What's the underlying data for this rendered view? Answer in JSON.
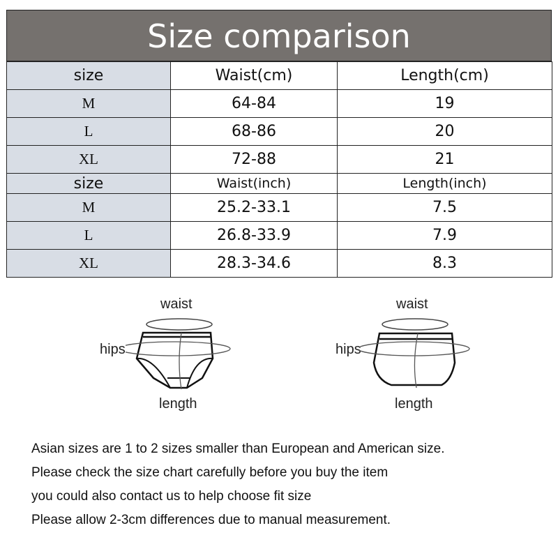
{
  "title": "Size comparison",
  "cm_table": {
    "headers": [
      "size",
      "Waist(cm)",
      "Length(cm)"
    ],
    "rows": [
      [
        "M",
        "64-84",
        "19"
      ],
      [
        "L",
        "68-86",
        "20"
      ],
      [
        "XL",
        "72-88",
        "21"
      ]
    ]
  },
  "inch_table": {
    "headers": [
      "size",
      "Waist(inch)",
      "Length(inch)"
    ],
    "rows": [
      [
        "M",
        "25.2-33.1",
        "7.5"
      ],
      [
        "L",
        "26.8-33.9",
        "7.9"
      ],
      [
        "XL",
        "28.3-34.6",
        "8.3"
      ]
    ]
  },
  "diagram": {
    "waist": "waist",
    "hips": "hips",
    "length": "length"
  },
  "notes": [
    "Asian sizes are 1 to 2 sizes smaller than European and American size.",
    "Please check the size chart carefully before you buy the item",
    "you could also contact us to help choose fit size",
    "Please allow 2-3cm differences due to manual measurement."
  ]
}
